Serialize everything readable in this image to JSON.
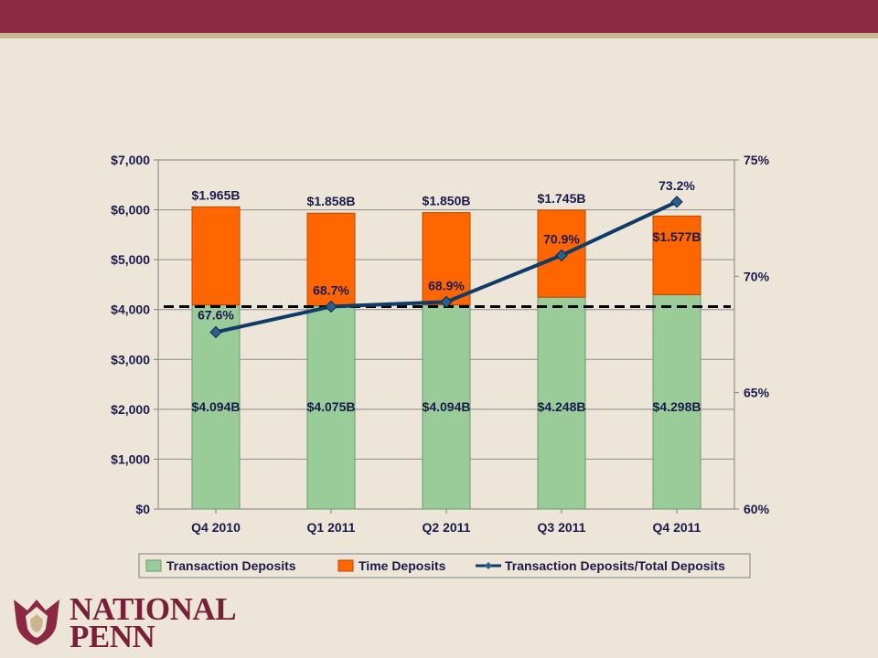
{
  "chart_data": {
    "type": "bar",
    "stacked": true,
    "categories": [
      "Q4 2010",
      "Q1 2011",
      "Q2 2011",
      "Q3 2011",
      "Q4 2011"
    ],
    "series": [
      {
        "name": "Transaction Deposits",
        "axis": "left",
        "color": "#99cc99",
        "values": [
          4094,
          4075,
          4094,
          4248,
          4298
        ],
        "labels": [
          "$4.094B",
          "$4.075B",
          "$4.094B",
          "$4.248B",
          "$4.298B"
        ]
      },
      {
        "name": "Time Deposits",
        "axis": "left",
        "color": "#ff6600",
        "values": [
          1965,
          1858,
          1850,
          1745,
          1577
        ],
        "labels": [
          "$1.965B",
          "$1.858B",
          "$1.850B",
          "$1.745B",
          "$1.577B"
        ]
      },
      {
        "name": "Transaction Deposits/Total Deposits",
        "axis": "right",
        "type": "line",
        "color": "#0f3b66",
        "values": [
          67.6,
          68.7,
          68.9,
          70.9,
          73.2
        ],
        "labels": [
          "67.6%",
          "68.7%",
          "68.9%",
          "70.9%",
          "73.2%"
        ]
      }
    ],
    "y_left": {
      "min": 0,
      "max": 7000,
      "ticks": [
        "$0",
        "$1,000",
        "$2,000",
        "$3,000",
        "$4,000",
        "$5,000",
        "$6,000",
        "$7,000"
      ]
    },
    "y_right": {
      "min": 60,
      "max": 75,
      "ticks": [
        "60%",
        "65%",
        "70%",
        "75%"
      ]
    },
    "reference_line": {
      "axis": "right",
      "value": 68.7,
      "style": "dashed"
    },
    "grid": true,
    "legend_position": "bottom"
  },
  "logo": {
    "line1": "NATIONAL",
    "line2": "PENN",
    "colors": {
      "maroon": "#8b2942",
      "gold": "#c9b58e"
    }
  }
}
